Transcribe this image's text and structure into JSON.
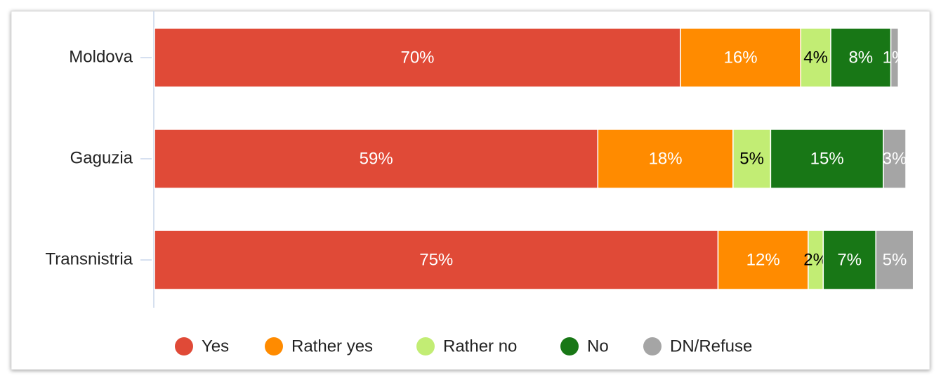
{
  "chart_data": {
    "type": "stacked-bar-horizontal",
    "categories": [
      "Moldova",
      "Gaguzia",
      "Transnistria"
    ],
    "series": [
      {
        "name": "Yes",
        "color": "#e04a37",
        "values": [
          70,
          59,
          75
        ],
        "value_labels": [
          "70%",
          "59%",
          "75%"
        ],
        "label_color": "#ffffff"
      },
      {
        "name": "Rather yes",
        "color": "#ff8b00",
        "values": [
          16,
          18,
          12
        ],
        "value_labels": [
          "16%",
          "18%",
          "12%"
        ],
        "label_color": "#ffffff"
      },
      {
        "name": "Rather no",
        "color": "#c2ed74",
        "values": [
          4,
          5,
          2
        ],
        "value_labels": [
          "4%",
          "5%",
          "2%"
        ],
        "label_color": "#000000"
      },
      {
        "name": "No",
        "color": "#187716",
        "values": [
          8,
          15,
          7
        ],
        "value_labels": [
          "8%",
          "15%",
          "7%"
        ],
        "label_color": "#ffffff"
      },
      {
        "name": "DN/Refuse",
        "color": "#a5a5a5",
        "values": [
          1,
          3,
          5
        ],
        "value_labels": [
          "1%",
          "3%",
          "5%"
        ],
        "label_color": "#ffffff"
      }
    ],
    "legend": "bottom"
  }
}
